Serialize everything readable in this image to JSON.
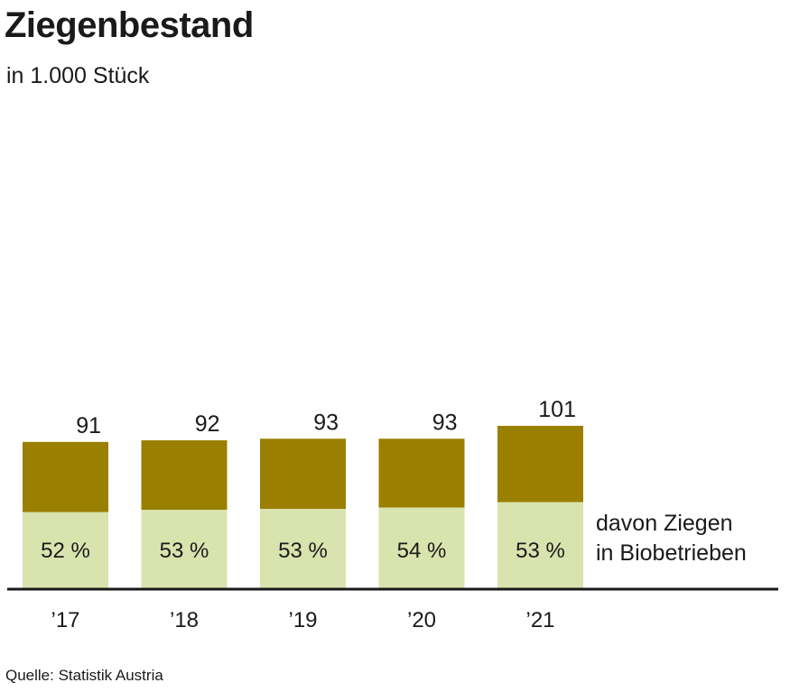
{
  "header": {
    "title": "Ziegenbestand",
    "subtitle": "in 1.000 Stück"
  },
  "footer": {
    "source": "Quelle: Statistik Austria"
  },
  "annotation": {
    "line1": "davon Ziegen",
    "line2": "in Biobetrieben"
  },
  "colors": {
    "total": "#9a7f00",
    "organic": "#d9e3ae",
    "axis": "#1a1a1a"
  },
  "chart_data": {
    "type": "bar",
    "stacked": true,
    "title": "Ziegenbestand",
    "subtitle": "in 1.000 Stück",
    "categories": [
      "’17",
      "’18",
      "’19",
      "’20",
      "’21"
    ],
    "total_labels": [
      "91",
      "92",
      "93",
      "93",
      "101"
    ],
    "share_labels": [
      "52 %",
      "53 %",
      "53 %",
      "54 %",
      "53 %"
    ],
    "series": [
      {
        "name": "davon Ziegen in Biobetrieben",
        "values": [
          47.3,
          48.8,
          49.3,
          50.2,
          53.5
        ]
      },
      {
        "values": [
          43.7,
          43.2,
          43.7,
          42.8,
          47.5
        ]
      }
    ],
    "totals": [
      91,
      92,
      93,
      93,
      101
    ],
    "organic_share_percent": [
      52,
      53,
      53,
      54,
      53
    ],
    "ylim": [
      0,
      101
    ],
    "grid": false,
    "legend": "right annotation"
  }
}
